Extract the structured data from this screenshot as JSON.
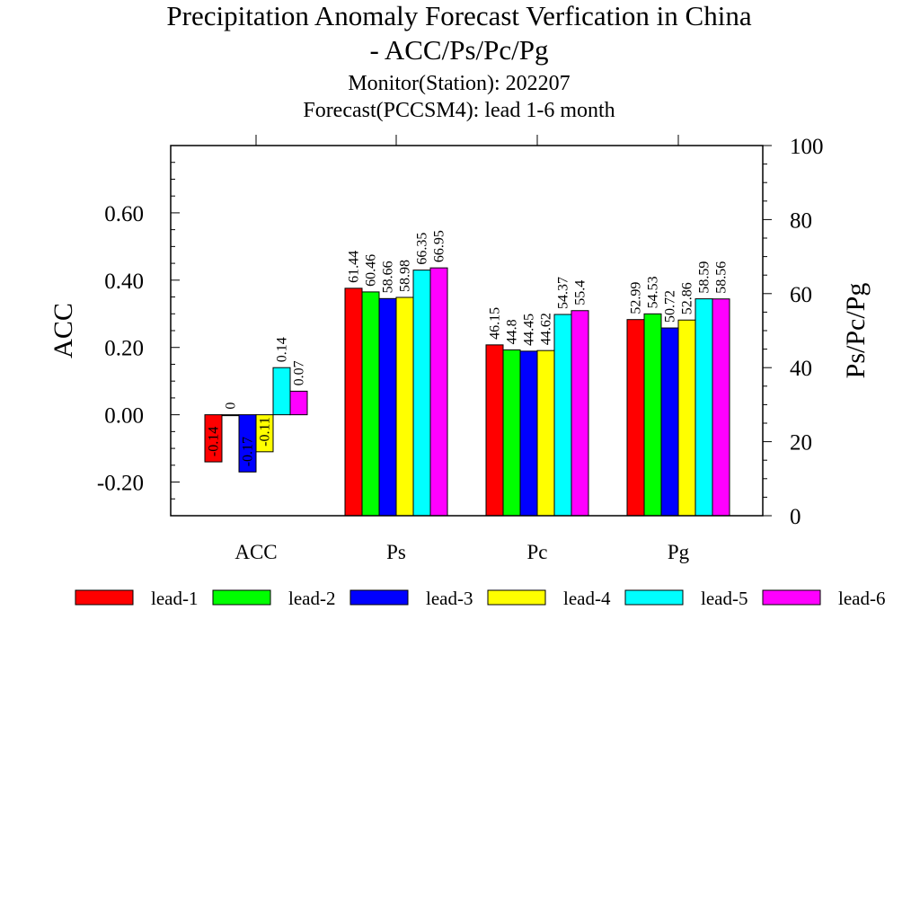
{
  "chart_data": {
    "type": "bar",
    "title": "Precipitation Anomaly Forecast Verfication in China",
    "title_line2": "- ACC/Ps/Pc/Pg",
    "subtitle": "Monitor(Station): 202207",
    "subtitle2": "Forecast(PCCSM4): lead 1-6 month",
    "ylabel_left": "ACC",
    "ylabel_right": "Ps/Pc/Pg",
    "categories": [
      "ACC",
      "Ps",
      "Pc",
      "Pg"
    ],
    "ylim_left": [
      -0.3,
      0.8
    ],
    "yticks_left": [
      "0.60",
      "0.40",
      "0.20",
      "0.00",
      "-0.20"
    ],
    "ylim_right": [
      0,
      100
    ],
    "yticks_right": [
      "100",
      "80",
      "60",
      "40",
      "20",
      "0"
    ],
    "legend_position": "bottom",
    "series": [
      {
        "name": "lead-1",
        "color": "#ff0000",
        "acc": -0.14,
        "acc_label": "-0.14",
        "ps": 61.44,
        "ps_label": "61.44",
        "pc": 46.15,
        "pc_label": "46.15",
        "pg": 52.99,
        "pg_label": "52.99"
      },
      {
        "name": "lead-2",
        "color": "#00ff00",
        "acc": 0,
        "acc_label": "0",
        "ps": 60.46,
        "ps_label": "60.46",
        "pc": 44.8,
        "pc_label": "44.8",
        "pg": 54.53,
        "pg_label": "54.53"
      },
      {
        "name": "lead-3",
        "color": "#0000ff",
        "acc": -0.17,
        "acc_label": "-0.17",
        "ps": 58.66,
        "ps_label": "58.66",
        "pc": 44.45,
        "pc_label": "44.45",
        "pg": 50.72,
        "pg_label": "50.72"
      },
      {
        "name": "lead-4",
        "color": "#ffff00",
        "acc": -0.11,
        "acc_label": "-0.11",
        "ps": 58.98,
        "ps_label": "58.98",
        "pc": 44.62,
        "pc_label": "44.62",
        "pg": 52.86,
        "pg_label": "52.86"
      },
      {
        "name": "lead-5",
        "color": "#00ffff",
        "acc": 0.14,
        "acc_label": "0.14",
        "ps": 66.35,
        "ps_label": "66.35",
        "pc": 54.37,
        "pc_label": "54.37",
        "pg": 58.59,
        "pg_label": "58.59"
      },
      {
        "name": "lead-6",
        "color": "#ff00ff",
        "acc": 0.07,
        "acc_label": "0.07",
        "ps": 66.95,
        "ps_label": "66.95",
        "pc": 55.4,
        "pc_label": "55.4",
        "pg": 58.56,
        "pg_label": "58.56"
      }
    ]
  }
}
